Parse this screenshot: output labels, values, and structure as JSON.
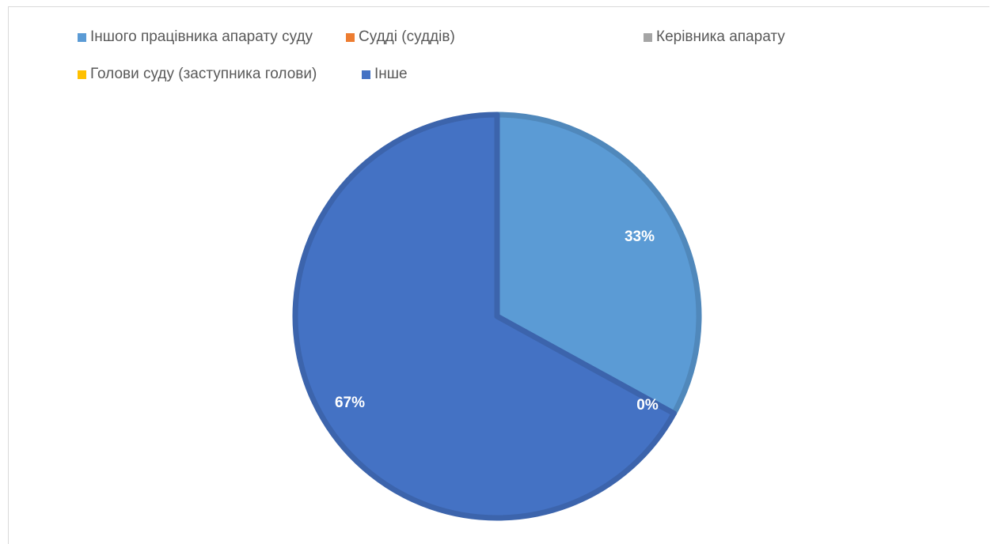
{
  "chart_data": {
    "type": "pie",
    "legend_position": "top",
    "categories": [
      "Іншого працівника апарату суду",
      "Судді (суддів)",
      "Керівника апарату",
      "Голови суду (заступника голови)",
      "Інше"
    ],
    "values": [
      33,
      0,
      0,
      0,
      67
    ],
    "data_labels": [
      "33%",
      "",
      "",
      "0%",
      "67%"
    ],
    "colors": [
      "#5B9BD5",
      "#ED7D31",
      "#A5A5A5",
      "#FFC000",
      "#4472C4"
    ]
  }
}
